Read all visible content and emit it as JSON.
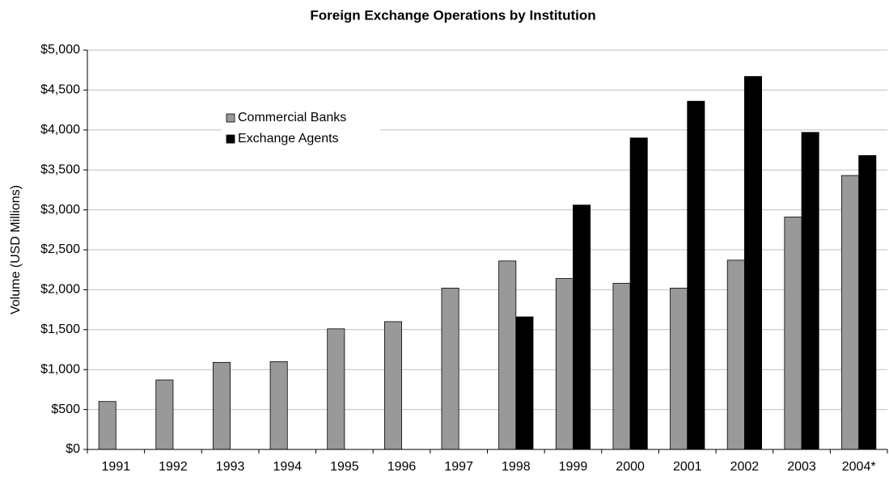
{
  "chart_data": {
    "type": "bar",
    "title": "Foreign Exchange Operations by Institution",
    "y_label": "Volume (USD Millions)",
    "categories": [
      "1991",
      "1992",
      "1993",
      "1994",
      "1995",
      "1996",
      "1997",
      "1998",
      "1999",
      "2000",
      "2001",
      "2002",
      "2003",
      "2004*"
    ],
    "series": [
      {
        "name": "Commercial Banks",
        "color": "#999999",
        "values": [
          600,
          870,
          1090,
          1100,
          1510,
          1600,
          2020,
          2360,
          2140,
          2080,
          2020,
          2370,
          2910,
          3430
        ]
      },
      {
        "name": "Exchange Agents",
        "color": "#000000",
        "values": [
          null,
          null,
          null,
          null,
          null,
          null,
          null,
          1660,
          3060,
          3900,
          4360,
          4670,
          3970,
          3680
        ]
      }
    ],
    "ylim": [
      0,
      5000
    ],
    "yticks": [
      {
        "value": 0,
        "label": "$0"
      },
      {
        "value": 500,
        "label": "$500"
      },
      {
        "value": 1000,
        "label": "$1,000"
      },
      {
        "value": 1500,
        "label": "$1,500"
      },
      {
        "value": 2000,
        "label": "$2,000"
      },
      {
        "value": 2500,
        "label": "$2,500"
      },
      {
        "value": 3000,
        "label": "$3,000"
      },
      {
        "value": 3500,
        "label": "$3,500"
      },
      {
        "value": 4000,
        "label": "$4,000"
      },
      {
        "value": 4500,
        "label": "$4,500"
      },
      {
        "value": 5000,
        "label": "$5,000"
      }
    ],
    "grid": true
  }
}
